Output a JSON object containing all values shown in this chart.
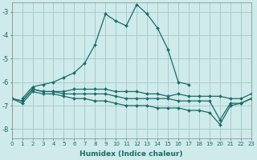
{
  "xlabel": "Humidex (Indice chaleur)",
  "bg_color": "#ceeaea",
  "grid_color": "#aacccc",
  "line_color": "#1a6b6b",
  "xlim": [
    0,
    23
  ],
  "ylim": [
    -8.4,
    -2.6
  ],
  "yticks": [
    -8,
    -7,
    -6,
    -5,
    -4,
    -3
  ],
  "xticks": [
    0,
    1,
    2,
    3,
    4,
    5,
    6,
    7,
    8,
    9,
    10,
    11,
    12,
    13,
    14,
    15,
    16,
    17,
    18,
    19,
    20,
    21,
    22,
    23
  ],
  "series": [
    [
      null,
      -6.7,
      -6.2,
      -6.1,
      -6.0,
      -5.8,
      -5.6,
      -5.2,
      -4.4,
      -3.1,
      -3.4,
      -3.6,
      -2.7,
      -3.1,
      -3.7,
      -4.6,
      -6.0,
      -6.1,
      null,
      null,
      null,
      null,
      null,
      null
    ],
    [
      -6.7,
      -6.8,
      -6.3,
      -6.4,
      -6.4,
      -6.4,
      -6.3,
      -6.3,
      -6.3,
      -6.3,
      -6.4,
      -6.4,
      -6.4,
      -6.5,
      -6.5,
      -6.6,
      -6.5,
      -6.6,
      -6.6,
      -6.6,
      -6.6,
      -6.7,
      -6.7,
      -6.5
    ],
    [
      -6.7,
      -6.8,
      -6.3,
      -6.4,
      -6.4,
      -6.5,
      -6.5,
      -6.5,
      -6.5,
      -6.5,
      -6.6,
      -6.7,
      -6.7,
      -6.7,
      -6.7,
      -6.7,
      -6.8,
      -6.8,
      -6.8,
      -6.8,
      -7.6,
      -6.9,
      -6.9,
      -6.7
    ],
    [
      -6.7,
      -6.9,
      -6.4,
      -6.5,
      -6.5,
      -6.6,
      -6.7,
      -6.7,
      -6.8,
      -6.8,
      -6.9,
      -7.0,
      -7.0,
      -7.0,
      -7.1,
      -7.1,
      -7.1,
      -7.2,
      -7.2,
      -7.3,
      -7.8,
      -7.0,
      -6.9,
      -6.7
    ]
  ]
}
